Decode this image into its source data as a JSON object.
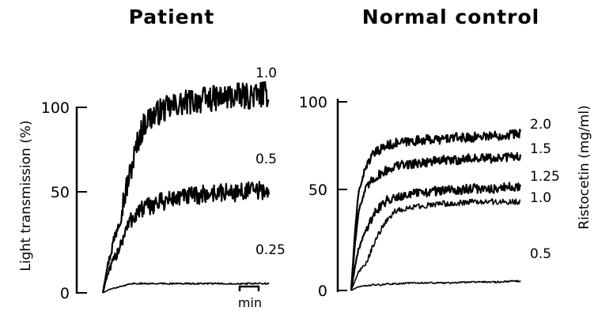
{
  "chart_data": [
    {
      "type": "line",
      "title": "Patient",
      "ylabel": "Light transmission (%)",
      "xlabel": "",
      "ylim": [
        0,
        100
      ],
      "yticks": [
        0,
        50,
        100
      ],
      "x_unit": "min",
      "x": [
        0,
        0.25,
        0.5,
        1,
        1.5,
        2,
        2.5,
        3,
        4,
        5,
        6,
        7,
        8,
        9,
        10,
        11,
        11.5
      ],
      "series": [
        {
          "name": "1.0",
          "noise": 7,
          "values": [
            0,
            12,
            20,
            36,
            52,
            68,
            84,
            93,
            98,
            101,
            103,
            104,
            105,
            106,
            106,
            107,
            107
          ]
        },
        {
          "name": "0.5",
          "noise": 5,
          "values": [
            0,
            8,
            13,
            22,
            32,
            40,
            44,
            46,
            49,
            51,
            52,
            53,
            54,
            54,
            55,
            55,
            55
          ]
        },
        {
          "name": "0.25",
          "noise": 0.4,
          "values": [
            0,
            1,
            2,
            3,
            4,
            5,
            5,
            5,
            5,
            5,
            5,
            5,
            5,
            5,
            5,
            5,
            5
          ]
        }
      ]
    },
    {
      "type": "line",
      "title": "Normal control",
      "ylabel": "",
      "y2label": "Ristocetin (mg/ml)",
      "ylim": [
        0,
        100
      ],
      "yticks": [
        0,
        50,
        100
      ],
      "x": [
        0,
        0.25,
        0.5,
        1,
        1.5,
        2,
        2.5,
        3,
        4,
        5,
        6,
        7,
        8,
        9,
        10,
        11,
        11.5
      ],
      "series": [
        {
          "name": "2.0",
          "noise": 2.5,
          "values": [
            0,
            30,
            52,
            66,
            72,
            75,
            77,
            78,
            79,
            80,
            80,
            81,
            81,
            82,
            82,
            83,
            83
          ]
        },
        {
          "name": "1.5",
          "noise": 2.5,
          "values": [
            0,
            24,
            42,
            54,
            59,
            62,
            64,
            66,
            67,
            68,
            69,
            69,
            70,
            70,
            70,
            71,
            71
          ]
        },
        {
          "name": "1.25",
          "noise": 2.5,
          "values": [
            0,
            12,
            22,
            32,
            40,
            45,
            48,
            50,
            51,
            52,
            53,
            53,
            54,
            54,
            54,
            55,
            55
          ]
        },
        {
          "name": "1.0",
          "noise": 1.5,
          "values": [
            0,
            5,
            10,
            14,
            24,
            32,
            38,
            42,
            44,
            45,
            46,
            46,
            47,
            47,
            47,
            47,
            47
          ]
        },
        {
          "name": "0.5",
          "noise": 0.4,
          "values": [
            0,
            1,
            2,
            2.5,
            3,
            3,
            3.5,
            3.5,
            4,
            4,
            4,
            4,
            4.5,
            4.5,
            4.5,
            5,
            5
          ]
        }
      ]
    }
  ],
  "scale_bar_label": "min"
}
